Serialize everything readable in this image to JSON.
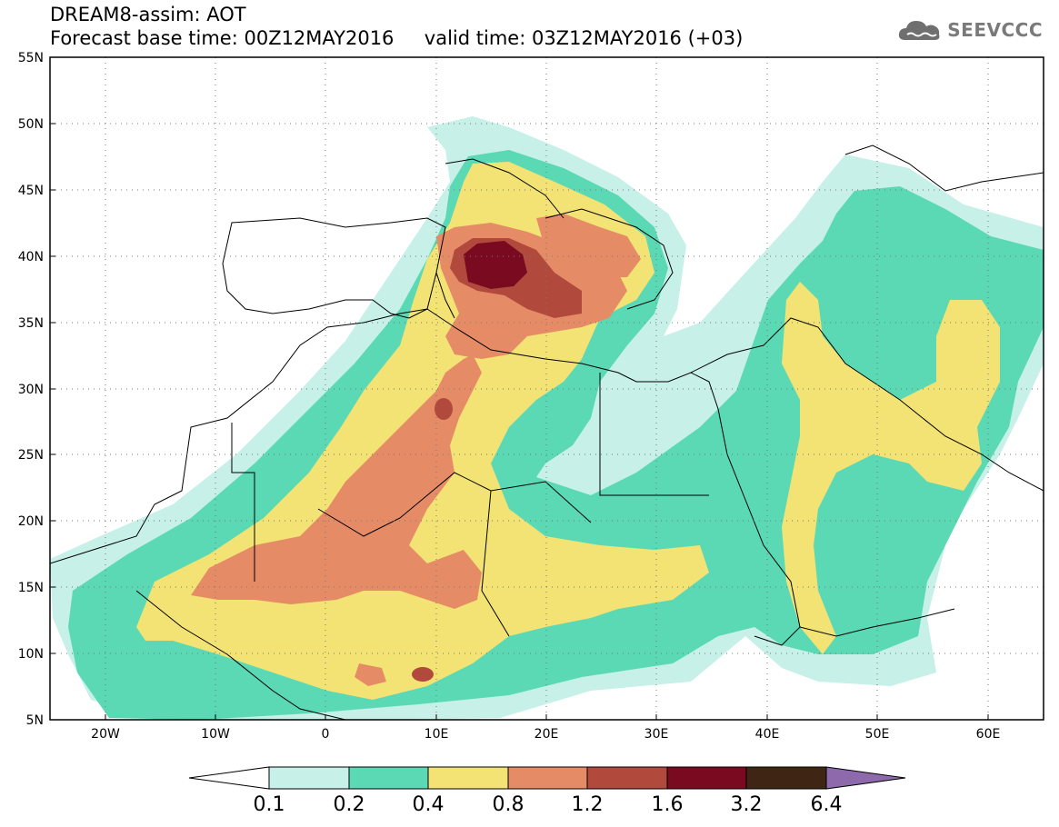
{
  "header": {
    "line1": "DREAM8-assim: AOT",
    "line2": "Forecast base time: 00Z12MAY2016     valid time: 03Z12MAY2016 (+03)"
  },
  "logo": {
    "text": "SEEVCCC",
    "icon": "cloud-icon"
  },
  "map": {
    "lon_range": [
      -25,
      65
    ],
    "lat_range": [
      5,
      55
    ],
    "x_ticks": [
      "20W",
      "10W",
      "0",
      "10E",
      "20E",
      "30E",
      "40E",
      "50E",
      "60E"
    ],
    "y_ticks": [
      "5N",
      "10N",
      "15N",
      "20N",
      "25N",
      "30N",
      "35N",
      "40N",
      "45N",
      "50N",
      "55N"
    ],
    "grid": "dotted"
  },
  "colorbar": {
    "colors": [
      "#ffffff",
      "#c6f0e8",
      "#5ad9b4",
      "#f3e375",
      "#e58c67",
      "#b14a3c",
      "#7a0a20",
      "#3e2514",
      "#8e6aac"
    ],
    "labels": [
      "0.1",
      "0.2",
      "0.4",
      "0.8",
      "1.2",
      "1.6",
      "3.2",
      "6.4"
    ]
  }
}
